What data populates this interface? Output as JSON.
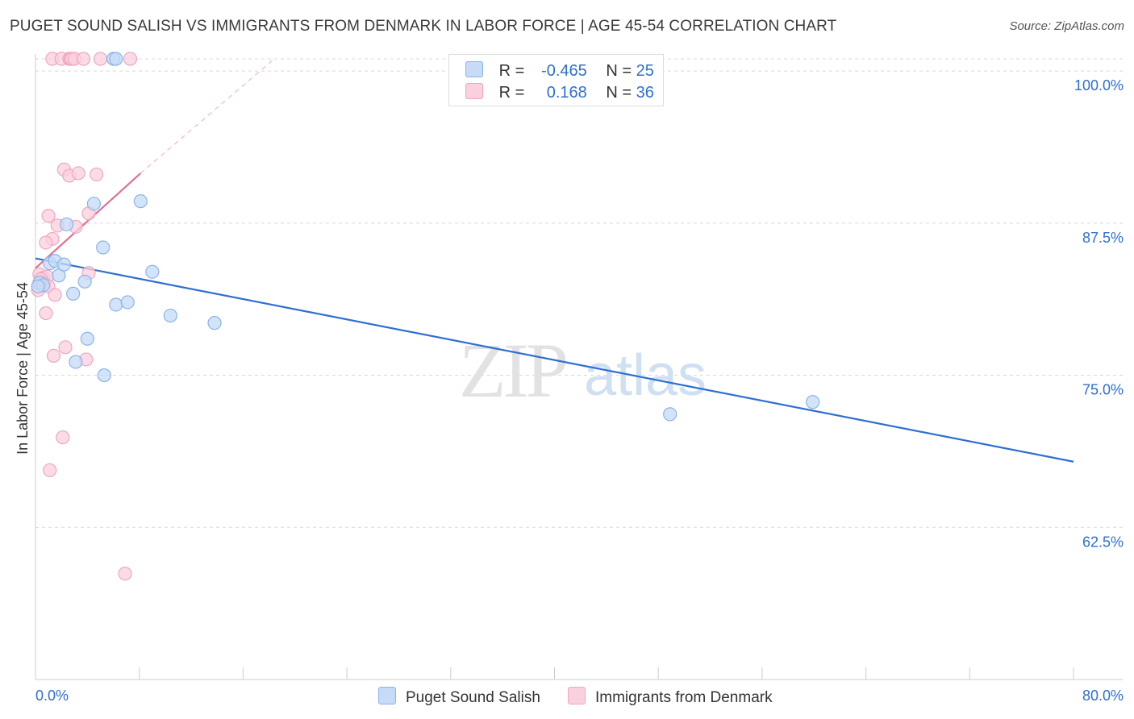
{
  "title": "PUGET SOUND SALISH VS IMMIGRANTS FROM DENMARK IN LABOR FORCE | AGE 45-54 CORRELATION CHART",
  "source": "Source: ZipAtlas.com",
  "watermark": {
    "zip": "ZIP",
    "atlas": "atlas"
  },
  "legend": {
    "r_label": "R =",
    "n_label": "N =",
    "rows": [
      {
        "r": "-0.465",
        "n": "25"
      },
      {
        "r": "0.168",
        "n": "36"
      }
    ]
  },
  "chart_data": {
    "type": "scatter",
    "title": "PUGET SOUND SALISH VS IMMIGRANTS FROM DENMARK IN LABOR FORCE | AGE 45-54 CORRELATION CHART",
    "xlabel": "",
    "ylabel": "In Labor Force | Age 45-54",
    "xlim": [
      0,
      80
    ],
    "ylim": [
      50,
      101
    ],
    "x_tick_labels": [
      "0.0%",
      "80.0%"
    ],
    "y_ticks": [
      62.5,
      75.0,
      87.5,
      100.0
    ],
    "y_tick_labels": [
      "62.5%",
      "75.0%",
      "87.5%",
      "100.0%"
    ],
    "grid": true,
    "legend_position": "bottom",
    "series": [
      {
        "name": "Puget Sound Salish",
        "color": "#8ab4ea",
        "fill": "#c5dbf6",
        "line_color": "#2e6fd1",
        "r": -0.465,
        "n": 25,
        "trend": {
          "x": [
            0,
            80
          ],
          "y": [
            84.6,
            67.9
          ]
        },
        "points": [
          [
            0.3,
            82.6
          ],
          [
            0.6,
            82.4
          ],
          [
            1.1,
            84.2
          ],
          [
            1.5,
            84.4
          ],
          [
            1.8,
            83.2
          ],
          [
            2.2,
            84.1
          ],
          [
            2.4,
            87.4
          ],
          [
            2.9,
            81.7
          ],
          [
            3.1,
            76.1
          ],
          [
            3.8,
            82.7
          ],
          [
            4.0,
            78.0
          ],
          [
            4.5,
            89.1
          ],
          [
            5.2,
            85.5
          ],
          [
            5.3,
            75.0
          ],
          [
            6.0,
            101.0
          ],
          [
            6.2,
            101.0
          ],
          [
            6.2,
            80.8
          ],
          [
            7.1,
            81.0
          ],
          [
            8.1,
            89.3
          ],
          [
            9.0,
            83.5
          ],
          [
            10.4,
            79.9
          ],
          [
            13.8,
            79.3
          ],
          [
            48.9,
            71.8
          ],
          [
            59.9,
            72.8
          ],
          [
            0.2,
            82.3
          ]
        ]
      },
      {
        "name": "Immigrants from Denmark",
        "color": "#f0a6bf",
        "fill": "#f9d0de",
        "line_color": "#e36f96",
        "r": 0.168,
        "n": 36,
        "trend": {
          "x": [
            0,
            8.1
          ],
          "y": [
            83.8,
            91.6
          ]
        },
        "trend_extension": {
          "x": [
            8.1,
            18.4
          ],
          "y": [
            91.6,
            101.0
          ]
        },
        "points": [
          [
            1.3,
            101.0
          ],
          [
            2.0,
            101.0
          ],
          [
            2.6,
            101.0
          ],
          [
            2.7,
            101.0
          ],
          [
            2.8,
            101.0
          ],
          [
            3.0,
            101.0
          ],
          [
            3.7,
            101.0
          ],
          [
            5.0,
            101.0
          ],
          [
            7.3,
            101.0
          ],
          [
            2.2,
            91.9
          ],
          [
            2.6,
            91.4
          ],
          [
            3.3,
            91.6
          ],
          [
            4.7,
            91.5
          ],
          [
            1.0,
            88.1
          ],
          [
            1.7,
            87.3
          ],
          [
            3.1,
            87.2
          ],
          [
            4.1,
            88.3
          ],
          [
            1.3,
            86.2
          ],
          [
            0.8,
            85.9
          ],
          [
            4.1,
            83.4
          ],
          [
            0.3,
            83.3
          ],
          [
            0.6,
            83.0
          ],
          [
            0.9,
            83.1
          ],
          [
            0.4,
            82.9
          ],
          [
            0.7,
            82.5
          ],
          [
            1.0,
            82.3
          ],
          [
            0.2,
            82.0
          ],
          [
            1.5,
            81.6
          ],
          [
            0.8,
            80.1
          ],
          [
            2.3,
            77.3
          ],
          [
            1.4,
            76.6
          ],
          [
            3.9,
            76.3
          ],
          [
            2.1,
            69.9
          ],
          [
            1.1,
            67.2
          ],
          [
            6.9,
            58.7
          ],
          [
            0.5,
            82.6
          ]
        ]
      }
    ]
  }
}
